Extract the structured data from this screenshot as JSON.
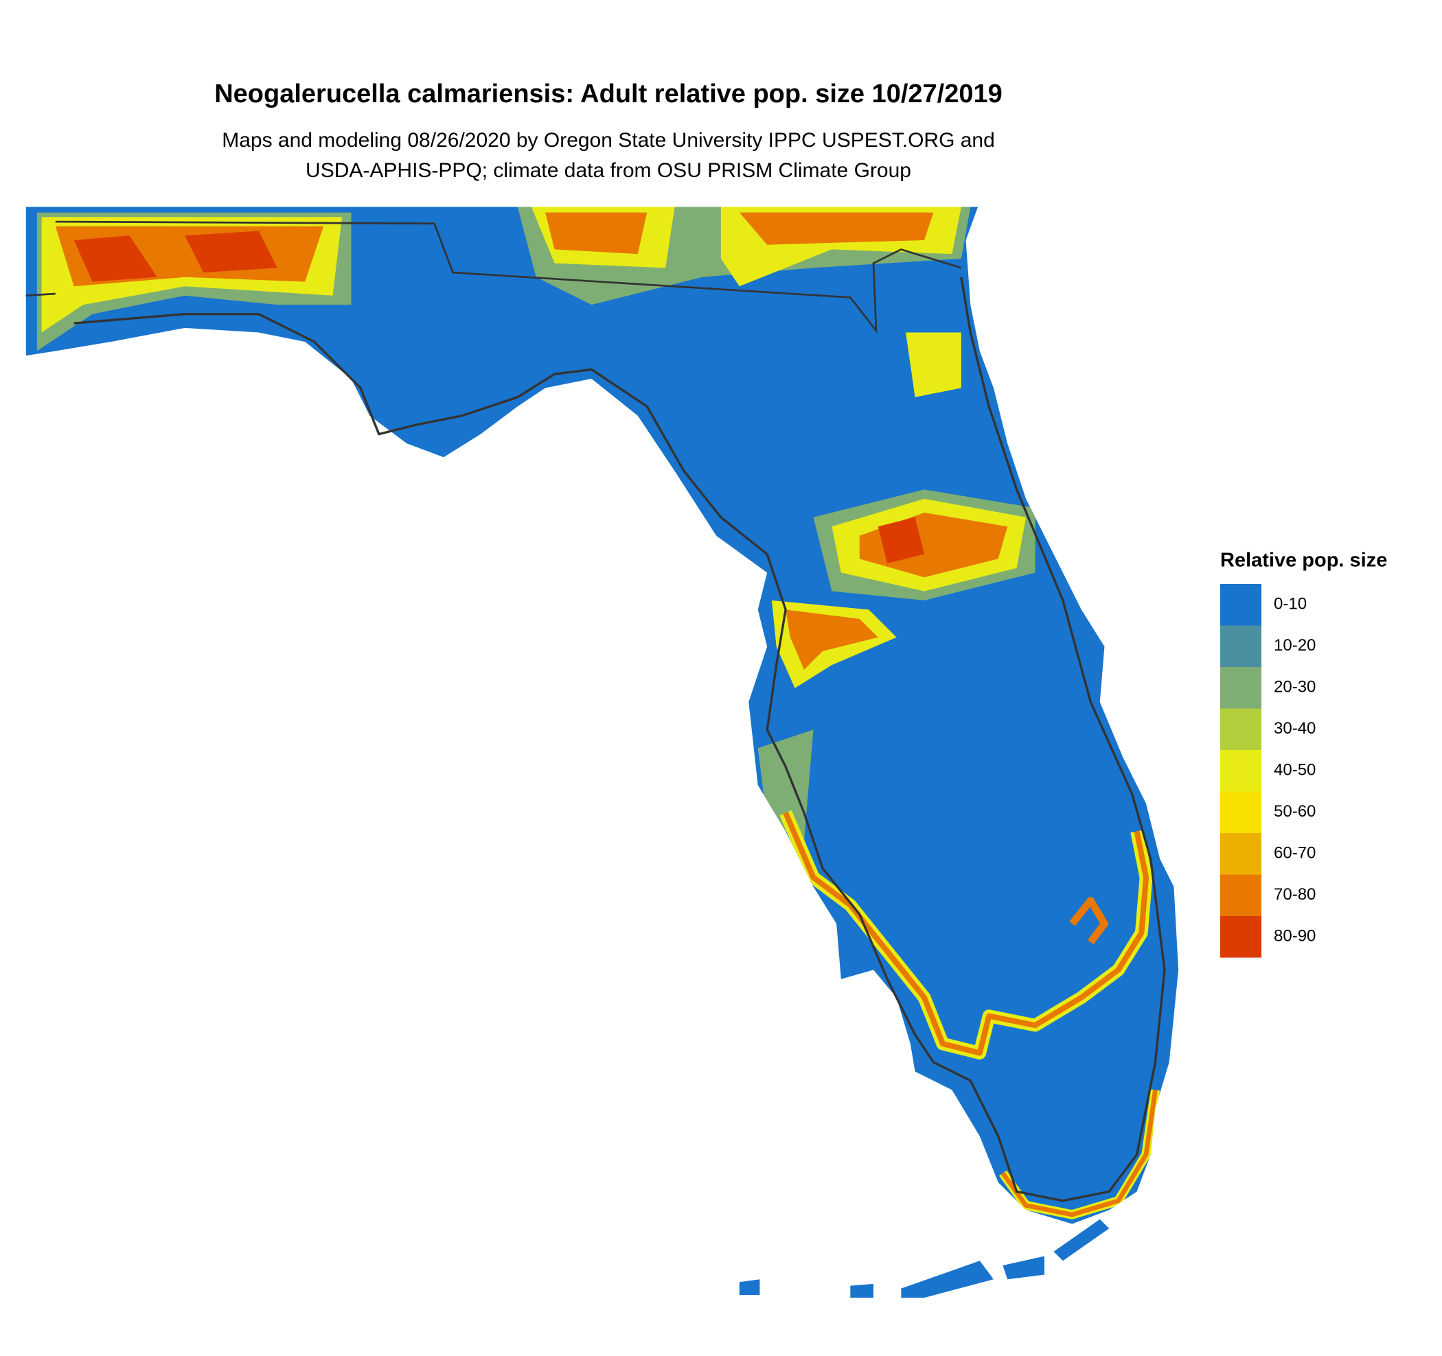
{
  "title": "Neogalerucella calmariensis: Adult relative pop. size 10/27/2019",
  "subtitle": [
    "Maps and modeling 08/26/2020 by Oregon State University IPPC USPEST.ORG and",
    "USDA-APHIS-PPQ; climate data from OSU PRISM Climate Group"
  ],
  "legend": {
    "title": "Relative pop. size",
    "items": [
      {
        "label": "0-10",
        "color": "#1874cd"
      },
      {
        "label": "10-20",
        "color": "#4a90a0"
      },
      {
        "label": "20-30",
        "color": "#7fae74"
      },
      {
        "label": "30-40",
        "color": "#b4cf3c"
      },
      {
        "label": "40-50",
        "color": "#e8ec14"
      },
      {
        "label": "50-60",
        "color": "#f8e000"
      },
      {
        "label": "60-70",
        "color": "#eeb000"
      },
      {
        "label": "70-80",
        "color": "#e87800"
      },
      {
        "label": "80-90",
        "color": "#dc3c00"
      }
    ]
  }
}
